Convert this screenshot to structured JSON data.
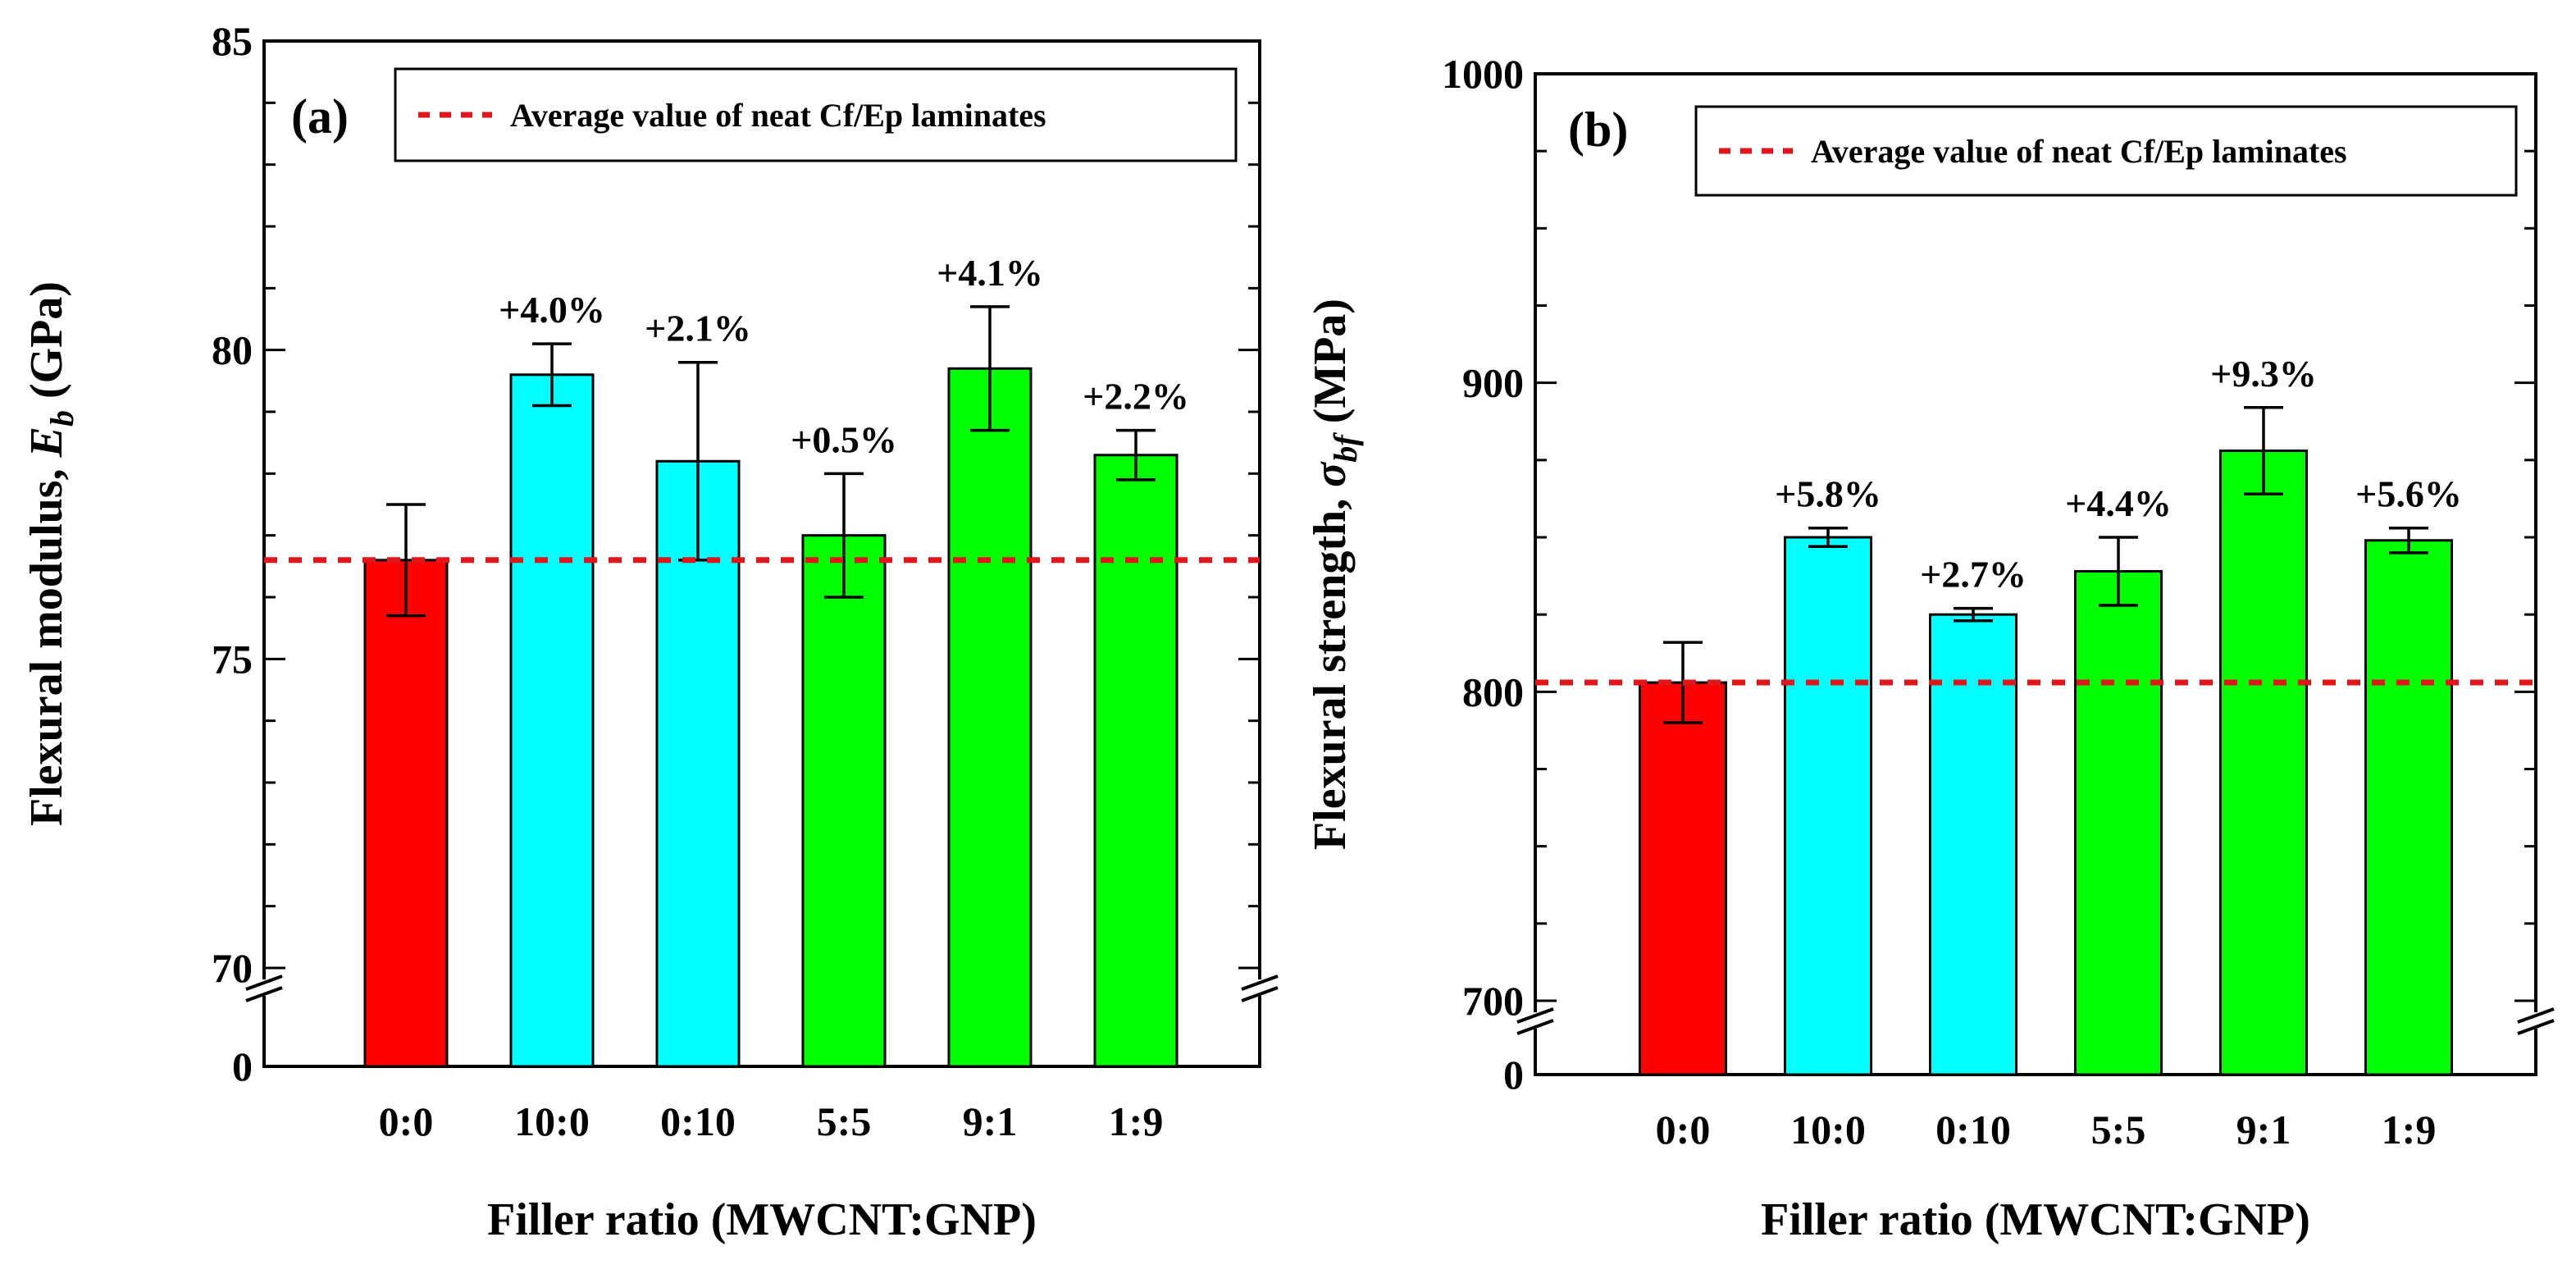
{
  "chart_data": [
    {
      "type": "bar",
      "panel_label": "(a)",
      "title": "",
      "xlabel": "Filler ratio (MWCNT:GNP)",
      "ylabel_prefix": "Flexural modulus, ",
      "ylabel_symbol": "E",
      "ylabel_subscript": "b",
      "ylabel_suffix": "(GPa)",
      "categories": [
        "0:0",
        "10:0",
        "0:10",
        "5:5",
        "9:1",
        "1:9"
      ],
      "values": [
        76.6,
        79.6,
        78.2,
        77.0,
        79.7,
        78.3
      ],
      "errors": [
        0.9,
        0.5,
        1.6,
        1.0,
        1.0,
        0.4
      ],
      "change_labels": [
        "",
        "+4.0%",
        "+2.1%",
        "+0.5%",
        "+4.1%",
        "+2.2%"
      ],
      "bar_colors": [
        "#ff0000",
        "#00ffff",
        "#00ffff",
        "#00ff00",
        "#00ff00",
        "#00ff00"
      ],
      "reference_value": 76.6,
      "reference_label": "Average value of neat Cf/Ep laminates",
      "reference_color": "#e0161b",
      "ylim": [
        70,
        85
      ],
      "ytick_values": [
        70,
        75,
        80,
        85
      ],
      "ytick_labels": [
        "70",
        "75",
        "80",
        "85"
      ],
      "axis_break": true,
      "baseline_label": "0",
      "grid": false,
      "legend_position": "top"
    },
    {
      "type": "bar",
      "panel_label": "(b)",
      "title": "",
      "xlabel": "Filler ratio (MWCNT:GNP)",
      "ylabel_prefix": "Flexural strength, ",
      "ylabel_symbol": "σ",
      "ylabel_subscript": "bf",
      "ylabel_suffix": "(MPa)",
      "categories": [
        "0:0",
        "10:0",
        "0:10",
        "5:5",
        "9:1",
        "1:9"
      ],
      "values": [
        803,
        850,
        825,
        839,
        878,
        849
      ],
      "errors": [
        13,
        3,
        2,
        11,
        14,
        4
      ],
      "change_labels": [
        "",
        "+5.8%",
        "+2.7%",
        "+4.4%",
        "+9.3%",
        "+5.6%"
      ],
      "bar_colors": [
        "#ff0000",
        "#00ffff",
        "#00ffff",
        "#00ff00",
        "#00ff00",
        "#00ff00"
      ],
      "reference_value": 803,
      "reference_label": "Average value of neat Cf/Ep laminates",
      "reference_color": "#e0161b",
      "ylim": [
        700,
        1000
      ],
      "ytick_values": [
        700,
        800,
        900,
        1000
      ],
      "ytick_labels": [
        "700",
        "800",
        "900",
        "1000"
      ],
      "axis_break": true,
      "baseline_label": "0",
      "grid": false,
      "legend_position": "top"
    }
  ]
}
